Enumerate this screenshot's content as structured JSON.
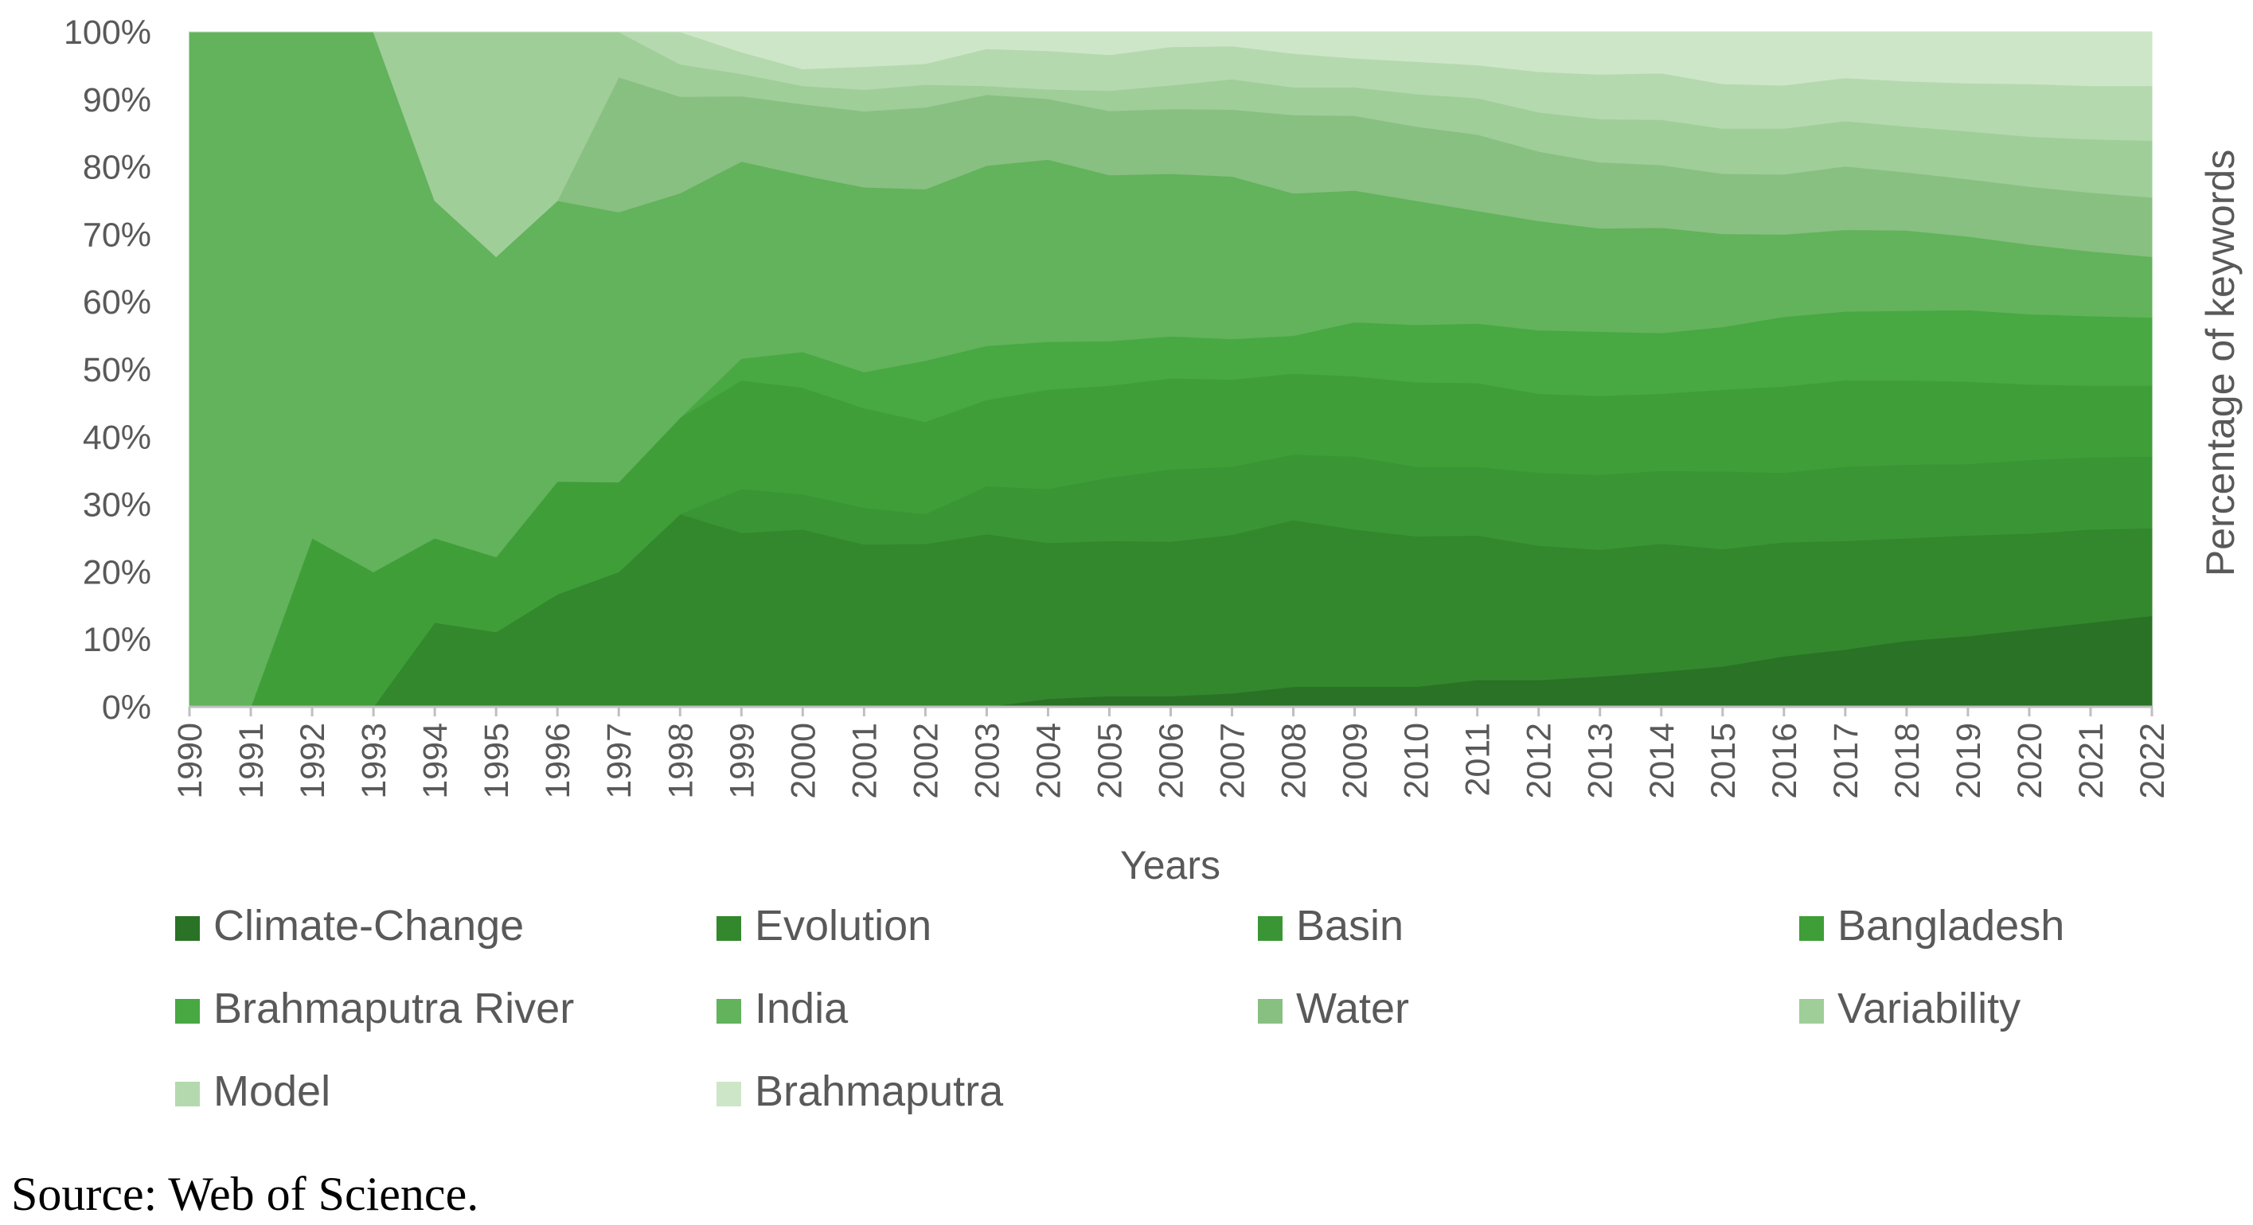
{
  "chart_data": {
    "type": "area",
    "stacking": "percent",
    "title": "",
    "xlabel": "Years",
    "ylabel": "Percentage of keywords",
    "ylim": [
      0,
      100
    ],
    "yticks": [
      "0%",
      "10%",
      "20%",
      "30%",
      "40%",
      "50%",
      "60%",
      "70%",
      "80%",
      "90%",
      "100%"
    ],
    "categories": [
      "1990",
      "1991",
      "1992",
      "1993",
      "1994",
      "1995",
      "1996",
      "1997",
      "1998",
      "1999",
      "2000",
      "2001",
      "2002",
      "2003",
      "2004",
      "2005",
      "2006",
      "2007",
      "2008",
      "2009",
      "2010",
      "2011",
      "2012",
      "2013",
      "2014",
      "2015",
      "2016",
      "2017",
      "2018",
      "2019",
      "2020",
      "2021",
      "2022"
    ],
    "legend_position": "bottom",
    "series": [
      {
        "name": "Climate-Change",
        "color": "#2a7226",
        "values": [
          0,
          0,
          0,
          0,
          0,
          0,
          0,
          0,
          0,
          0,
          0,
          0,
          0,
          0,
          1.2,
          1.6,
          1.6,
          2,
          3,
          3,
          3,
          4,
          4,
          4.5,
          5.2,
          6,
          7.5,
          8.5,
          9.8,
          10.5,
          11.5,
          12.5,
          13.5
        ]
      },
      {
        "name": "Evolution",
        "color": "#33882d",
        "values": [
          0,
          0,
          0,
          0,
          12.5,
          11.1,
          16.7,
          20,
          28.6,
          25.8,
          26.3,
          24.8,
          25.1,
          25.6,
          23.1,
          23,
          22.9,
          23.5,
          24.7,
          23.3,
          22.3,
          21.4,
          19.9,
          18.8,
          19,
          17.4,
          16.9,
          16.1,
          15.2,
          14.9,
          14.2,
          13.8,
          13
        ]
      },
      {
        "name": "Basin",
        "color": "#3a9634",
        "values": [
          0,
          0,
          0,
          0,
          0,
          0,
          0,
          0,
          0,
          6.5,
          5.2,
          5.6,
          4.6,
          7.1,
          8,
          9.4,
          10.7,
          10.1,
          9.7,
          10.8,
          10.3,
          10.2,
          10.8,
          11.1,
          10.8,
          11.5,
          10.3,
          11,
          10.9,
          10.6,
          10.9,
          10.7,
          10.6
        ]
      },
      {
        "name": "Bangladesh",
        "color": "#3f9e38",
        "values": [
          0,
          0,
          25,
          20,
          12.5,
          11.1,
          16.7,
          13.3,
          14.3,
          16.1,
          15.8,
          15.2,
          14.2,
          12.8,
          14.7,
          13.6,
          13.5,
          12.9,
          12,
          11.9,
          12.5,
          12.4,
          11.7,
          11.7,
          11.4,
          12.1,
          12.8,
          12.8,
          12.5,
          12.2,
          11.2,
          10.6,
          10.5
        ]
      },
      {
        "name": "Brahmaputra River",
        "color": "#48a842",
        "values": [
          0,
          0,
          0,
          0,
          0,
          0,
          0,
          0,
          0,
          3.2,
          5.3,
          5.5,
          9.4,
          8,
          7.1,
          6.6,
          6.2,
          6,
          5.6,
          8,
          8.5,
          8.8,
          9.4,
          9.5,
          9,
          9.3,
          10.3,
          10.2,
          10.3,
          10.6,
          10.4,
          10.3,
          10.1
        ]
      },
      {
        "name": "India",
        "color": "#62b35c",
        "values": [
          100,
          100,
          75,
          80,
          50,
          44.5,
          41.6,
          40,
          33.3,
          29.2,
          26.2,
          28.2,
          26.4,
          26.7,
          27,
          24.6,
          24.1,
          24.1,
          21.1,
          19.5,
          18.4,
          16.7,
          16.2,
          15.3,
          15.6,
          13.8,
          12.2,
          12.1,
          11.9,
          10.9,
          10.3,
          9.6,
          9
        ]
      },
      {
        "name": "Water",
        "color": "#88c081",
        "values": [
          0,
          0,
          0,
          0,
          0,
          0,
          0,
          20,
          14.3,
          9.7,
          10.5,
          11.6,
          12.6,
          10.5,
          9,
          9.5,
          9.6,
          9.9,
          11.6,
          11.1,
          11,
          11.3,
          10.3,
          9.8,
          9.3,
          8.9,
          8.9,
          9.4,
          8.6,
          8.5,
          8.6,
          8.7,
          8.8
        ]
      },
      {
        "name": "Variability",
        "color": "#9fce99",
        "values": [
          0,
          0,
          0,
          0,
          25,
          33.3,
          25,
          6.7,
          4.8,
          3.3,
          2.7,
          3.3,
          3.5,
          1.3,
          1.4,
          3,
          3.5,
          4.5,
          4.1,
          4.2,
          4.8,
          5.4,
          5.8,
          6.4,
          6.7,
          6.7,
          6.8,
          6.7,
          6.8,
          7.1,
          7.4,
          7.9,
          8.4
        ]
      },
      {
        "name": "Model",
        "color": "#b4d9ae",
        "values": [
          0,
          0,
          0,
          0,
          0,
          0,
          0,
          0,
          4.8,
          3.2,
          2.5,
          3.5,
          3.2,
          5.5,
          5.7,
          5.3,
          5.7,
          4.9,
          5,
          4.3,
          4.8,
          4.9,
          6,
          6.6,
          6.9,
          6.6,
          6.4,
          6.4,
          6.7,
          7.1,
          7.8,
          7.9,
          8.1
        ]
      },
      {
        "name": "Brahmaputra",
        "color": "#cde6c8",
        "values": [
          0,
          0,
          0,
          0,
          0,
          0,
          0,
          0,
          0,
          3,
          5.5,
          5.3,
          4.9,
          2.5,
          2.8,
          3.4,
          2.2,
          2.1,
          3.2,
          3.9,
          4.4,
          4.9,
          5.9,
          6.3,
          6.1,
          7.7,
          7.9,
          6.8,
          7.3,
          7.6,
          7.7,
          8,
          8
        ]
      }
    ]
  },
  "source_note": "Source: Web of Science."
}
